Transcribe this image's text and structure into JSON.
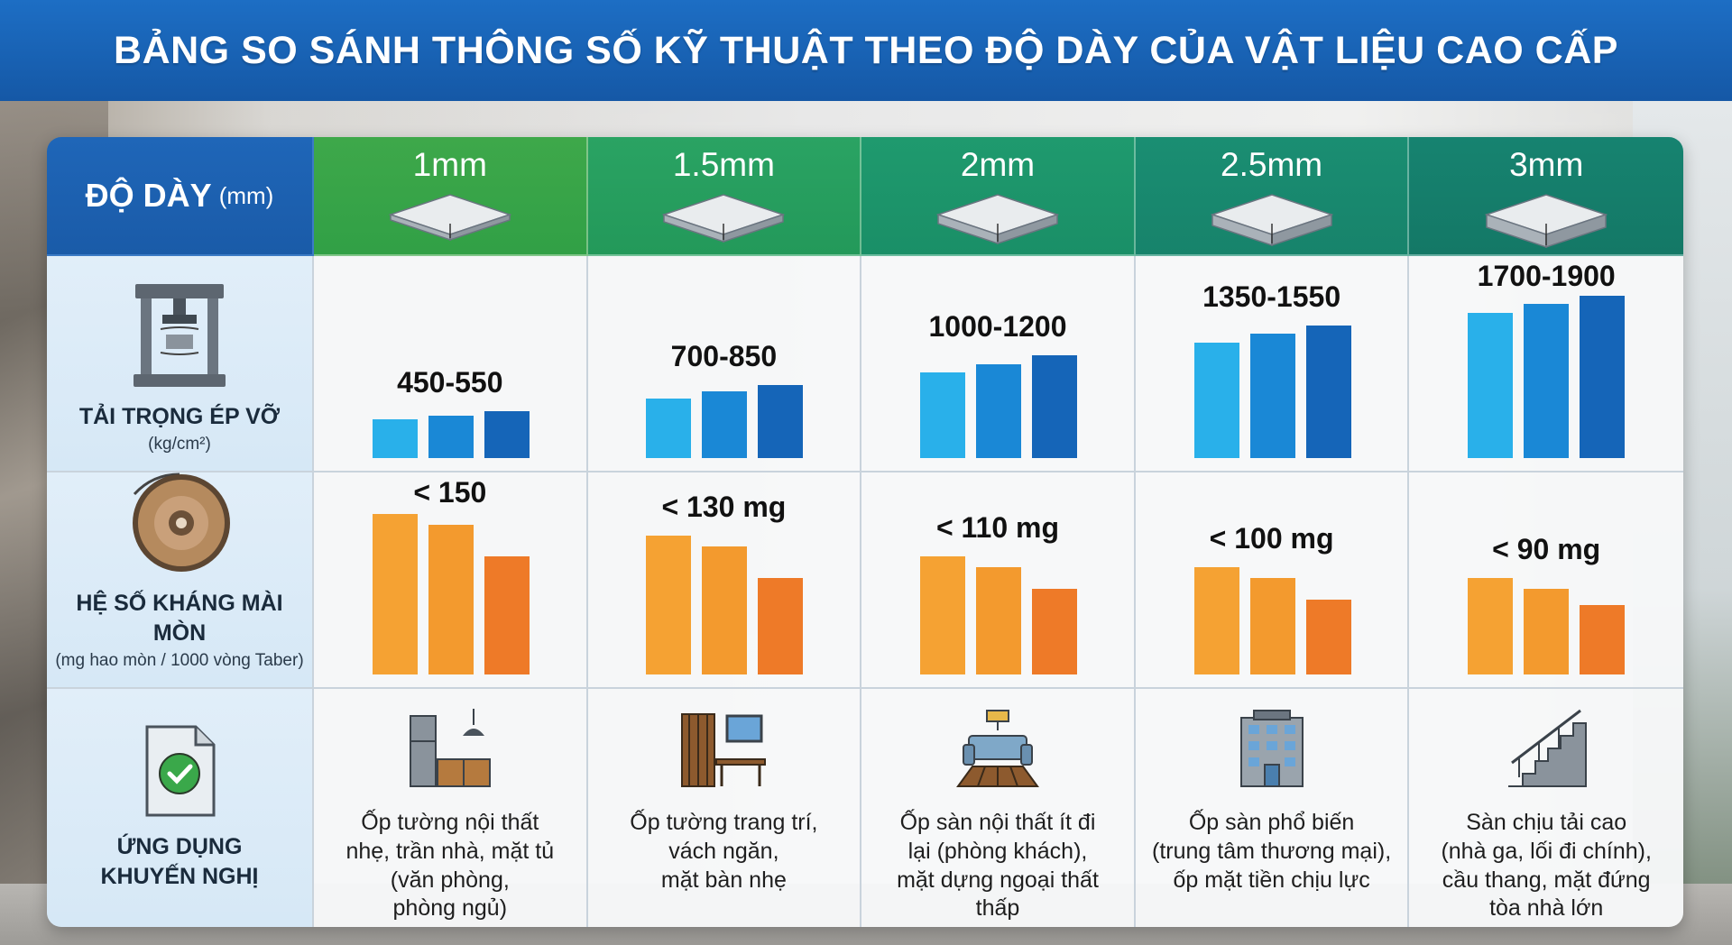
{
  "title": "BẢNG SO SÁNH THÔNG SỐ KỸ THUẬT THEO ĐỘ DÀY CỦA VẬT LIỆU CAO CẤP",
  "header": {
    "label": "ĐỘ DÀY",
    "unit": "(mm)",
    "thicknesses": [
      "1mm",
      "1.5mm",
      "2mm",
      "2.5mm",
      "3mm"
    ]
  },
  "rows": {
    "load": {
      "label": "TẢI TRỌNG ÉP VỠ",
      "sub": "(kg/cm²)",
      "icon": "hydraulic-press-icon",
      "values": [
        "450-550",
        "700-850",
        "1000-1200",
        "1350-1550",
        "1700-1900"
      ],
      "colors": [
        "#29b0ea",
        "#1a88d6",
        "#1565b8"
      ]
    },
    "abrasion": {
      "label": "HỆ SỐ KHÁNG MÀI MÒN",
      "sub": "(mg hao mòn / 1000 vòng Taber)",
      "icon": "abrasion-wheel-icon",
      "values": [
        "< 150",
        "< 130 mg",
        "< 110 mg",
        "< 100 mg",
        "< 90 mg"
      ],
      "colors": [
        "#f5a233",
        "#f39a2e",
        "#ee7a28"
      ]
    },
    "usage": {
      "label_line1": "ỨNG DỤNG",
      "label_line2": "KHUYẾN NGHỊ",
      "icon": "document-check-icon",
      "items": [
        {
          "icon": "kitchen-icon",
          "lines": [
            "Ốp tường nội thất",
            "nhẹ, trần nhà, mặt tủ",
            "(văn phòng,",
            "phòng ngủ)"
          ]
        },
        {
          "icon": "office-desk-icon",
          "lines": [
            "Ốp tường trang trí,",
            "vách ngăn,",
            "mặt bàn nhẹ"
          ]
        },
        {
          "icon": "living-room-icon",
          "lines": [
            "Ốp sàn nội thất ít đi",
            "lại (phòng khách),",
            "mặt dựng ngoại thất",
            "thấp"
          ]
        },
        {
          "icon": "building-icon",
          "lines": [
            "Ốp sàn phổ biến",
            "(trung tâm thương mại),",
            "ốp mặt tiền chịu lực"
          ]
        },
        {
          "icon": "staircase-icon",
          "lines": [
            "Sàn chịu tải cao",
            "(nhà ga, lối đi chính),",
            "cầu thang, mặt đứng",
            "tòa nhà lớn"
          ]
        }
      ]
    }
  },
  "chart_data": [
    {
      "type": "bar",
      "series": [
        {
          "values": [
            450,
            500,
            550
          ]
        },
        {
          "values": [
            700,
            775,
            850
          ]
        },
        {
          "values": [
            1000,
            1100,
            1200
          ]
        },
        {
          "values": [
            1350,
            1450,
            1550
          ]
        },
        {
          "values": [
            1700,
            1800,
            1900
          ]
        }
      ]
    },
    {
      "type": "bar",
      "series": [
        {
          "values": [
            150,
            140,
            110
          ]
        },
        {
          "values": [
            130,
            120,
            90
          ]
        },
        {
          "values": [
            110,
            100,
            80
          ]
        },
        {
          "values": [
            100,
            90,
            70
          ]
        },
        {
          "values": [
            90,
            80,
            65
          ]
        }
      ]
    }
  ]
}
